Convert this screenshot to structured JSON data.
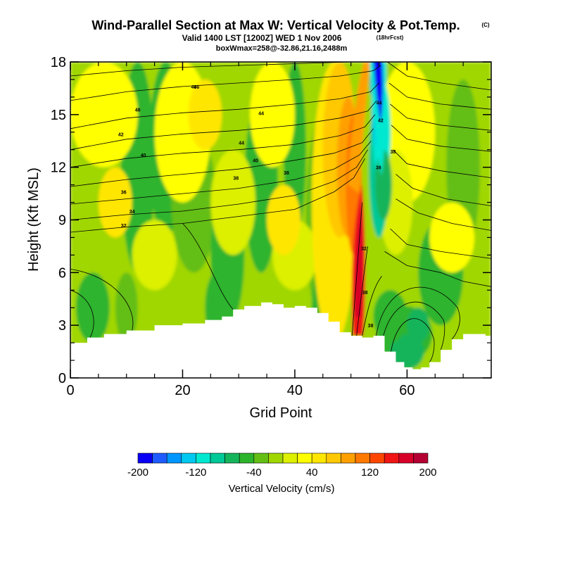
{
  "chart_data": {
    "type": "heatmap",
    "title": "Wind-Parallel Section at Max W: Vertical Velocity & Pot.Temp.",
    "title_mark": "(C)",
    "subtitle": "Valid 1400 LST [1200Z] WED 1 Nov 2006",
    "subtitle_note": "(18hrFcst)",
    "subtitle2": "boxWmax=258@-32.86,21.16,2488m",
    "xlabel": "Grid Point",
    "ylabel": "Height (Kft MSL)",
    "xlim": [
      0,
      75
    ],
    "ylim": [
      0,
      18
    ],
    "xticks": [
      "0",
      "20",
      "40",
      "60"
    ],
    "yticks": [
      "0",
      "3",
      "6",
      "9",
      "12",
      "15",
      "18"
    ],
    "colorbar": {
      "label": "Vertical Velocity (cm/s)",
      "tick_labels": [
        "-200",
        "-120",
        "-40",
        "40",
        "120",
        "200"
      ],
      "colors": [
        "#0a00f5",
        "#1f5cff",
        "#0096ff",
        "#00c8f0",
        "#00e8d0",
        "#00c896",
        "#14b45a",
        "#2db42d",
        "#64be14",
        "#a0d700",
        "#dcf000",
        "#ffff00",
        "#ffe600",
        "#ffc800",
        "#ffa000",
        "#ff7800",
        "#ff4600",
        "#f01414",
        "#d70028",
        "#b40032"
      ]
    },
    "terrain_profile": {
      "x": [
        0,
        3,
        6,
        10,
        15,
        20,
        24,
        27,
        29,
        31,
        34,
        36,
        38,
        40,
        42,
        44,
        46,
        48,
        50,
        52,
        54,
        56,
        58,
        59.5,
        61,
        62.5,
        64,
        66,
        68,
        70,
        72,
        74,
        75
      ],
      "y": [
        2.0,
        2.3,
        2.5,
        2.7,
        3.0,
        3.1,
        3.3,
        3.5,
        3.9,
        4.1,
        4.3,
        4.2,
        4.0,
        4.1,
        4.0,
        3.7,
        3.2,
        2.6,
        2.4,
        2.3,
        2.4,
        1.5,
        0.9,
        0.6,
        0.5,
        0.6,
        0.9,
        1.6,
        2.2,
        2.5,
        2.5,
        2.4,
        2.3
      ]
    },
    "theta_contours": [
      {
        "level": 32,
        "label": "32"
      },
      {
        "level": 34,
        "label": "34"
      },
      {
        "level": 36,
        "label": "36"
      },
      {
        "level": 38,
        "label": "38"
      },
      {
        "level": 40,
        "label": "40"
      },
      {
        "level": 42,
        "label": "42"
      },
      {
        "level": 44,
        "label": "44"
      },
      {
        "level": 46,
        "label": "46"
      },
      {
        "level": 48,
        "label": "48"
      }
    ],
    "updraft_max_cm_s": 258,
    "updraft_x": 52,
    "downdraft_x": 54.5
  }
}
